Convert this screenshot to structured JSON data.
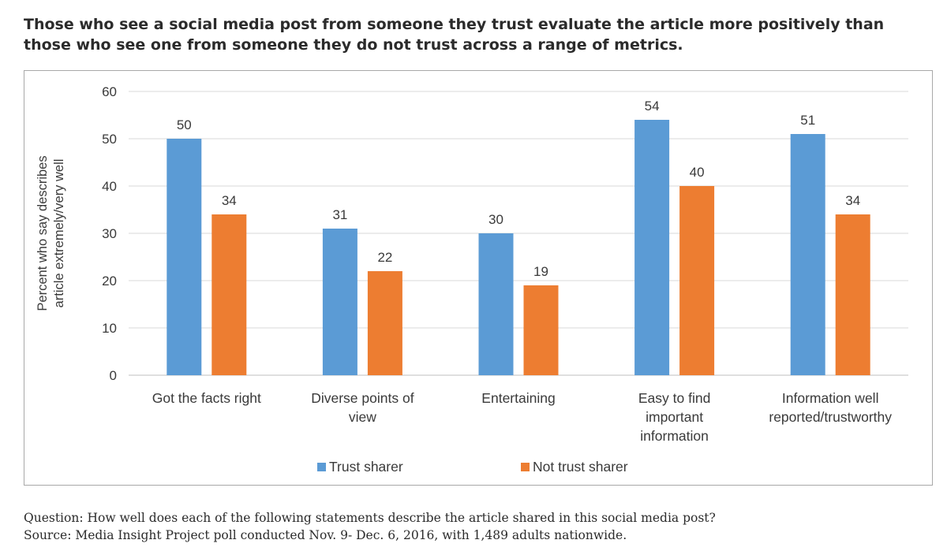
{
  "header": {
    "title": "Those who see a social media post from someone they trust evaluate the article more positively than those who see one from someone they do not trust across a range of metrics."
  },
  "chart_data": {
    "type": "bar",
    "categories": [
      [
        "Got the facts right"
      ],
      [
        "Diverse points of",
        "view"
      ],
      [
        "Entertaining"
      ],
      [
        "Easy to find",
        "important",
        "information"
      ],
      [
        "Information well",
        "reported/trustworthy"
      ]
    ],
    "series": [
      {
        "name": "Trust sharer",
        "color": "#5b9bd5",
        "values": [
          50,
          31,
          30,
          54,
          51
        ]
      },
      {
        "name": "Not trust sharer",
        "color": "#ed7d31",
        "values": [
          34,
          22,
          19,
          40,
          34
        ]
      }
    ],
    "title": "",
    "xlabel": "",
    "ylabel": [
      "Percent who say describes",
      "article extremely/very well"
    ],
    "ylim": [
      0,
      60
    ],
    "yticks": [
      0,
      10,
      20,
      30,
      40,
      50,
      60
    ],
    "grid": true,
    "legend_position": "bottom-center"
  },
  "footer": {
    "question": "Question: How well does each of the following statements describe the article shared in this social media post?",
    "source": "Source: Media Insight Project poll conducted Nov. 9- Dec. 6, 2016, with 1,489 adults nationwide."
  }
}
